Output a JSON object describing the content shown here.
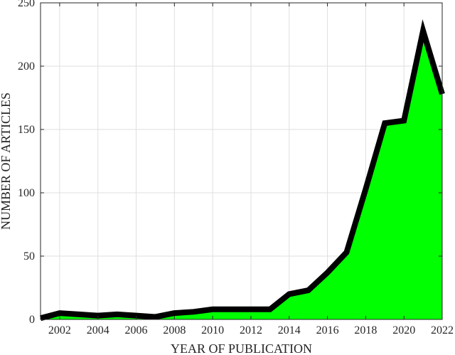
{
  "chart_data": {
    "type": "area",
    "title": "",
    "xlabel": "YEAR OF PUBLICATION",
    "ylabel": "NUMBER OF ARTICLES",
    "xlim": [
      2001,
      2022
    ],
    "ylim": [
      0,
      250
    ],
    "grid": true,
    "x_ticks": [
      "2002",
      "2004",
      "2006",
      "2008",
      "2010",
      "2012",
      "2014",
      "2016",
      "2018",
      "2020",
      "2022"
    ],
    "y_ticks": [
      "0",
      "50",
      "100",
      "150",
      "200",
      "250"
    ],
    "fill_color": "#00ff00",
    "line_color": "#000000",
    "x": [
      2001,
      2002,
      2003,
      2004,
      2005,
      2006,
      2007,
      2008,
      2009,
      2010,
      2011,
      2012,
      2013,
      2014,
      2015,
      2016,
      2017,
      2018,
      2019,
      2020,
      2021,
      2022
    ],
    "y": [
      1,
      5,
      4,
      3,
      4,
      3,
      2,
      5,
      6,
      8,
      8,
      8,
      8,
      20,
      23,
      37,
      53,
      103,
      155,
      157,
      228,
      178
    ]
  }
}
